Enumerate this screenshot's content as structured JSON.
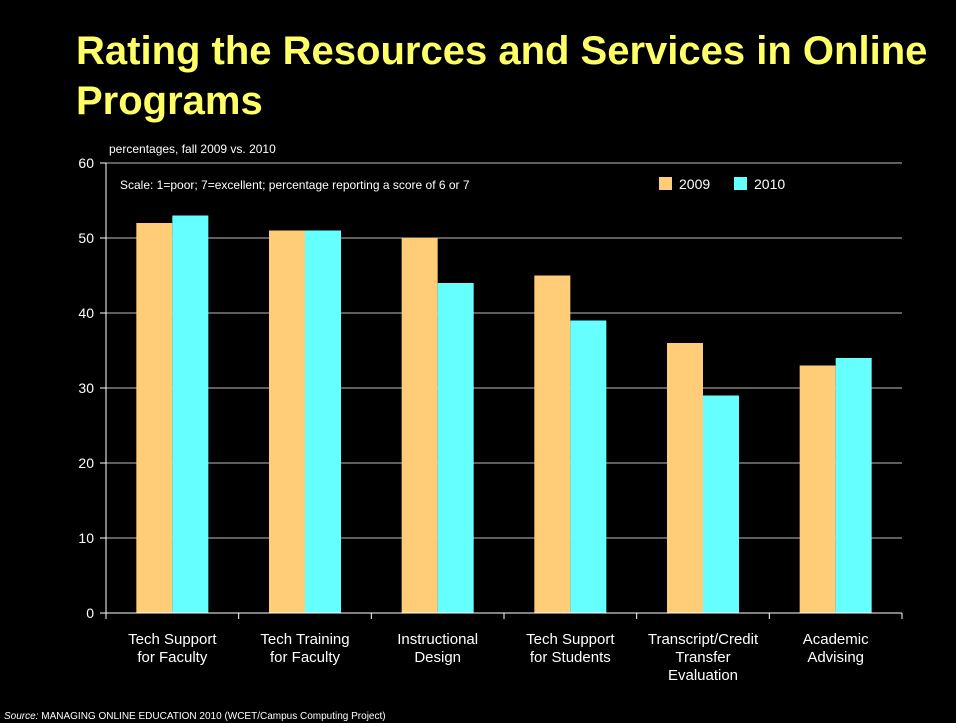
{
  "slide": {
    "title": "Rating the Resources and Services in Online Programs",
    "source_label": "Source:",
    "source_text": "MANAGING ONLINE EDUCATION 2010 (WCET/Campus Computing Project)"
  },
  "colors": {
    "background": "#000000",
    "title": "#ffff66",
    "text": "#ffffff",
    "series_2009": "#ffcc77",
    "series_2010": "#66ffff"
  },
  "chart_data": {
    "type": "bar",
    "title": "percentages, fall 2009 vs. 2010",
    "annotation": "Scale: 1=poor; 7=excellent;  percentage reporting a score of 6 or 7",
    "xlabel": "",
    "ylabel": "",
    "ylim": [
      0,
      60
    ],
    "yticks": [
      0,
      10,
      20,
      30,
      40,
      50,
      60
    ],
    "grid": true,
    "legend_position": "top-right",
    "categories": [
      [
        "Tech Support",
        "for Faculty"
      ],
      [
        "Tech Training",
        "for Faculty"
      ],
      [
        "Instructional",
        "Design"
      ],
      [
        "Tech Support",
        "for Students"
      ],
      [
        "Transcript/Credit",
        "Transfer",
        "Evaluation"
      ],
      [
        "Academic",
        "Advising"
      ]
    ],
    "series": [
      {
        "name": "2009",
        "color": "#ffcc77",
        "values": [
          52,
          51,
          50,
          45,
          36,
          33
        ]
      },
      {
        "name": "2010",
        "color": "#66ffff",
        "values": [
          53,
          51,
          44,
          39,
          29,
          34
        ]
      }
    ]
  }
}
